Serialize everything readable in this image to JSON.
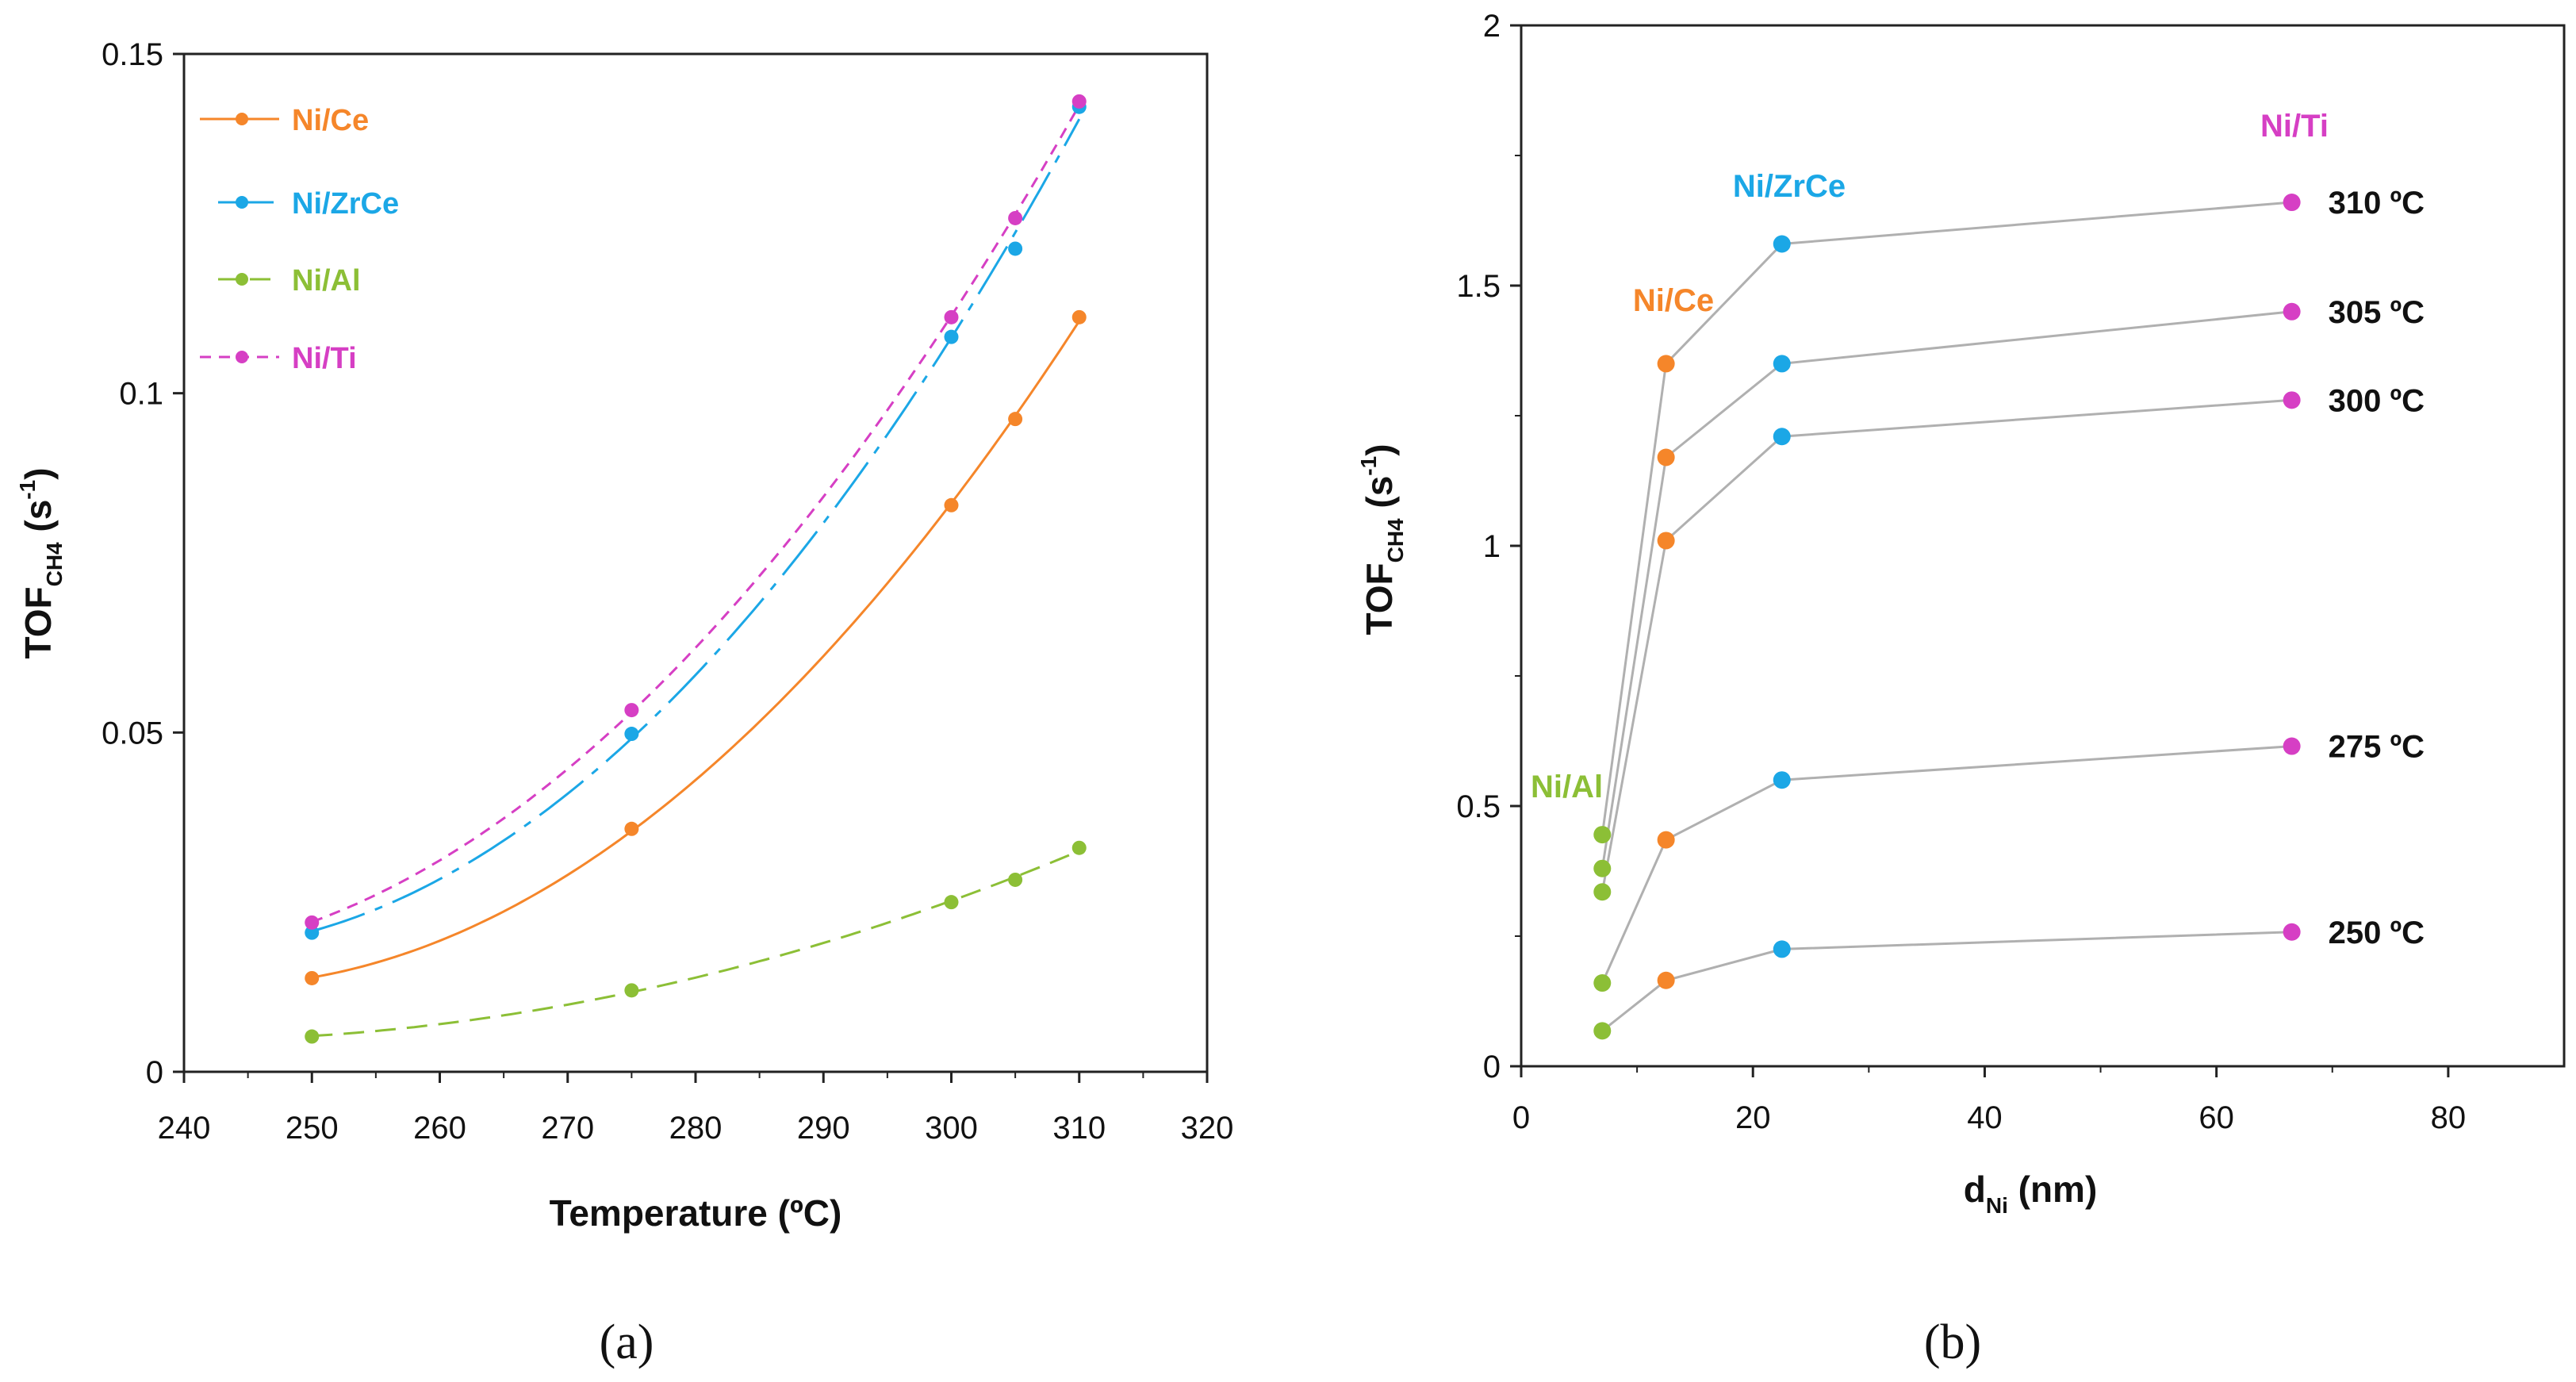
{
  "colors": {
    "Ni/Ce": "#f5862a",
    "Ni/ZrCe": "#1ba7e6",
    "Ni/Al": "#8cbf36",
    "Ni/Ti": "#d63fc4",
    "connector": "#b0b0b0"
  },
  "chart_data": [
    {
      "type": "line",
      "caption": "(a)",
      "xlabel": "Temperature (ºC)",
      "ylabel": "TOF",
      "ylabel_sub": "CH4",
      "ylabel_units": "(s",
      "ylabel_exp": "-1",
      "ylabel_close": ")",
      "xlim": [
        240,
        320
      ],
      "ylim": [
        0,
        0.15
      ],
      "x_ticks": [
        "240",
        "250",
        "260",
        "270",
        "280",
        "290",
        "300",
        "310",
        "320"
      ],
      "y_ticks": [
        "0",
        "0.05",
        "0.1",
        "0.15"
      ],
      "legend": [
        "Ni/Ce",
        "Ni/ZrCe",
        "Ni/Al",
        "Ni/Ti"
      ],
      "legend_position": "top-left",
      "series": [
        {
          "name": "Ni/Ce",
          "x": [
            250,
            275,
            300,
            305,
            310
          ],
          "y": [
            0.0138,
            0.0358,
            0.0835,
            0.0962,
            0.1112
          ]
        },
        {
          "name": "Ni/ZrCe",
          "x": [
            250,
            275,
            300,
            305,
            310
          ],
          "y": [
            0.0205,
            0.0498,
            0.1083,
            0.1213,
            0.1422
          ]
        },
        {
          "name": "Ni/Al",
          "x": [
            250,
            275,
            300,
            305,
            310
          ],
          "y": [
            0.0052,
            0.012,
            0.025,
            0.0283,
            0.033
          ]
        },
        {
          "name": "Ni/Ti",
          "x": [
            250,
            275,
            300,
            305,
            310
          ],
          "y": [
            0.022,
            0.0533,
            0.1112,
            0.1258,
            0.143
          ]
        }
      ]
    },
    {
      "type": "scatter",
      "caption": "(b)",
      "xlabel": "d",
      "xlabel_sub": "Ni",
      "xlabel_units": "(nm)",
      "ylabel": "TOF",
      "ylabel_sub": "CH4",
      "ylabel_units": "(s",
      "ylabel_exp": "-1",
      "ylabel_close": ")",
      "xlim": [
        0,
        90
      ],
      "ylim": [
        0,
        2
      ],
      "x_ticks": [
        "0",
        "20",
        "40",
        "60",
        "80"
      ],
      "y_ticks": [
        "0",
        "0.5",
        "1",
        "1.5",
        "2"
      ],
      "catalyst_labels": [
        "Ni/Al",
        "Ni/Ce",
        "Ni/ZrCe",
        "Ni/Ti"
      ],
      "catalyst_d": [
        7,
        12.5,
        22.5,
        66.5
      ],
      "temperature_labels": [
        "310 ºC",
        "305 ºC",
        "300 ºC",
        "275 ºC",
        "250 ºC"
      ],
      "series": [
        {
          "name": "310 ºC",
          "x": [
            7,
            12.5,
            22.5,
            66.5
          ],
          "y": [
            0.445,
            1.35,
            1.58,
            1.66
          ]
        },
        {
          "name": "305 ºC",
          "x": [
            7,
            12.5,
            22.5,
            66.5
          ],
          "y": [
            0.38,
            1.17,
            1.35,
            1.45
          ]
        },
        {
          "name": "300 ºC",
          "x": [
            7,
            12.5,
            22.5,
            66.5
          ],
          "y": [
            0.335,
            1.01,
            1.21,
            1.28
          ]
        },
        {
          "name": "275 ºC",
          "x": [
            7,
            12.5,
            22.5,
            66.5
          ],
          "y": [
            0.16,
            0.435,
            0.55,
            0.615
          ]
        },
        {
          "name": "250 ºC",
          "x": [
            7,
            12.5,
            22.5,
            66.5
          ],
          "y": [
            0.068,
            0.165,
            0.225,
            0.258
          ]
        }
      ]
    }
  ]
}
